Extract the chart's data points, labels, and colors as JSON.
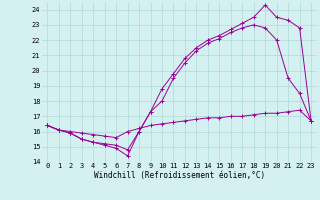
{
  "xlabel": "Windchill (Refroidissement éolien,°C)",
  "background_color": "#d4f0f0",
  "grid_color": "#b0d8d8",
  "line_color": "#990099",
  "xlim": [
    -0.5,
    23.5
  ],
  "ylim": [
    14,
    24.5
  ],
  "yticks": [
    14,
    15,
    16,
    17,
    18,
    19,
    20,
    21,
    22,
    23,
    24
  ],
  "xticks": [
    0,
    1,
    2,
    3,
    4,
    5,
    6,
    7,
    8,
    9,
    10,
    11,
    12,
    13,
    14,
    15,
    16,
    17,
    18,
    19,
    20,
    21,
    22,
    23
  ],
  "series1_x": [
    0,
    1,
    2,
    3,
    4,
    5,
    6,
    7,
    8,
    9,
    10,
    11,
    12,
    13,
    14,
    15,
    16,
    17,
    18,
    19,
    20,
    21,
    22,
    23
  ],
  "series1_y": [
    16.4,
    16.1,
    15.9,
    15.5,
    15.3,
    15.1,
    14.9,
    14.4,
    16.0,
    17.3,
    18.0,
    19.5,
    20.5,
    21.3,
    21.8,
    22.1,
    22.5,
    22.8,
    23.0,
    22.8,
    22.0,
    19.5,
    18.5,
    16.7
  ],
  "series2_x": [
    0,
    1,
    2,
    3,
    4,
    5,
    6,
    7,
    8,
    9,
    10,
    11,
    12,
    13,
    14,
    15,
    16,
    17,
    18,
    19,
    20,
    21,
    22,
    23
  ],
  "series2_y": [
    16.4,
    16.1,
    16.0,
    15.9,
    15.8,
    15.7,
    15.6,
    16.0,
    16.2,
    16.4,
    16.5,
    16.6,
    16.7,
    16.8,
    16.9,
    16.9,
    17.0,
    17.0,
    17.1,
    17.2,
    17.2,
    17.3,
    17.4,
    16.7
  ],
  "series3_x": [
    0,
    1,
    2,
    3,
    4,
    5,
    6,
    7,
    8,
    9,
    10,
    11,
    12,
    13,
    14,
    15,
    16,
    17,
    18,
    19,
    20,
    21,
    22,
    23
  ],
  "series3_y": [
    16.4,
    16.1,
    15.9,
    15.5,
    15.3,
    15.2,
    15.1,
    14.8,
    16.0,
    17.3,
    18.8,
    19.8,
    20.8,
    21.5,
    22.0,
    22.3,
    22.7,
    23.1,
    23.5,
    24.3,
    23.5,
    23.3,
    22.8,
    16.7
  ],
  "tick_fontsize": 5.0,
  "xlabel_fontsize": 5.5
}
